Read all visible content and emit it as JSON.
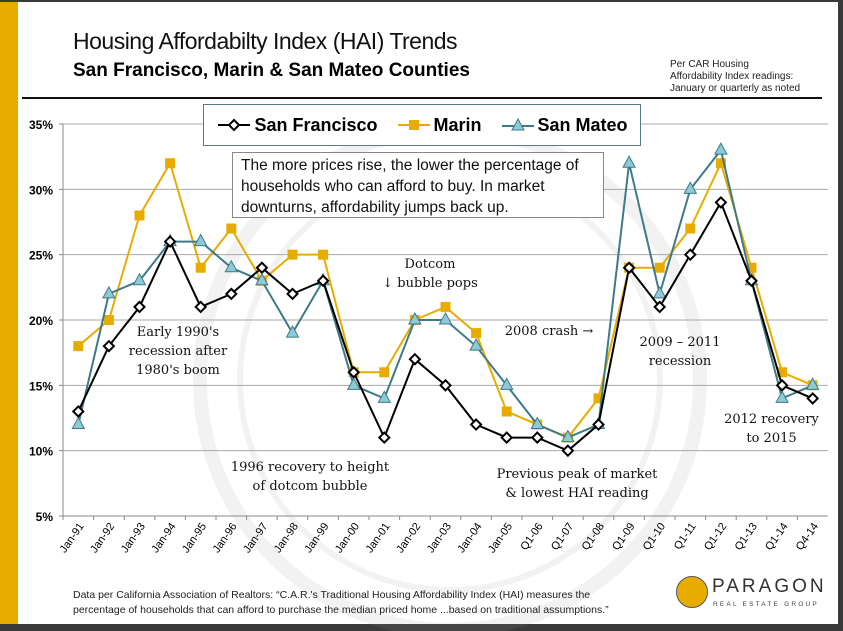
{
  "title": "Housing Affordabilty Index (HAI) Trends",
  "subtitle": "San Francisco, Marin & San Mateo Counties",
  "note": [
    "Per CAR Housing",
    "Affordability Index readings:",
    "January or quarterly as noted"
  ],
  "callout": "The more prices rise, the lower the percentage of households who can afford to buy. In market downturns, affordability jumps back up.",
  "annotations": {
    "a1": [
      "Early 1990's",
      "recession after",
      "1980's boom"
    ],
    "a2": [
      "1996 recovery to height",
      "of dotcom bubble"
    ],
    "a3": [
      "Dotcom",
      "↓ bubble pops"
    ],
    "a4": [
      "2008 crash →"
    ],
    "a5": [
      "Previous peak of market",
      "& lowest HAI reading"
    ],
    "a6": [
      "2009 – 2011",
      "recession"
    ],
    "a7": [
      "2012 recovery",
      "to 2015"
    ]
  },
  "footer": [
    "Data per California Association of Realtors: “C.A.R.'s Traditional Housing Affordability Index (HAI) measures the",
    "percentage of households that can afford to purchase the median priced home ...based on traditional assumptions.”"
  ],
  "logo": {
    "name": "PARAGON",
    "sub": "REAL ESTATE GROUP"
  },
  "colors": {
    "sf": "#000000",
    "marin": "#e8ac00",
    "sanmateo": "#3e7a88",
    "sanmateo_fill": "#8ec9d8",
    "accent": "#e8ac00"
  },
  "chart_data": {
    "type": "line",
    "ylim": [
      5,
      35
    ],
    "yticks": [
      "5%",
      "10%",
      "15%",
      "20%",
      "25%",
      "30%",
      "35%"
    ],
    "grid": true,
    "legend_placement": "top",
    "categories": [
      "Jan-91",
      "Jan-92",
      "Jan-93",
      "Jan-94",
      "Jan-95",
      "Jan-96",
      "Jan-97",
      "Jan-98",
      "Jan-99",
      "Jan-00",
      "Jan-01",
      "Jan-02",
      "Jan-03",
      "Jan-04",
      "Jan-05",
      "Q1-06",
      "Q1-07",
      "Q1-08",
      "Q1-09",
      "Q1-10",
      "Q1-11",
      "Q1-12",
      "Q1-13",
      "Q1-14",
      "Q4-14"
    ],
    "series": [
      {
        "name": "San Francisco",
        "marker": "diamond",
        "values": [
          13,
          18,
          21,
          26,
          21,
          22,
          24,
          22,
          23,
          16,
          11,
          17,
          15,
          12,
          11,
          11,
          10,
          12,
          24,
          21,
          25,
          29,
          23,
          15,
          14
        ]
      },
      {
        "name": "Marin",
        "marker": "square",
        "values": [
          18,
          20,
          28,
          32,
          24,
          27,
          23,
          25,
          25,
          16,
          16,
          20,
          21,
          19,
          13,
          12,
          11,
          14,
          24,
          24,
          27,
          32,
          24,
          16,
          15
        ]
      },
      {
        "name": "San Mateo",
        "marker": "triangle",
        "values": [
          12,
          22,
          23,
          26,
          26,
          24,
          23,
          19,
          23,
          15,
          14,
          20,
          20,
          18,
          15,
          12,
          11,
          12,
          32,
          22,
          30,
          33,
          23,
          14,
          15
        ]
      }
    ]
  }
}
